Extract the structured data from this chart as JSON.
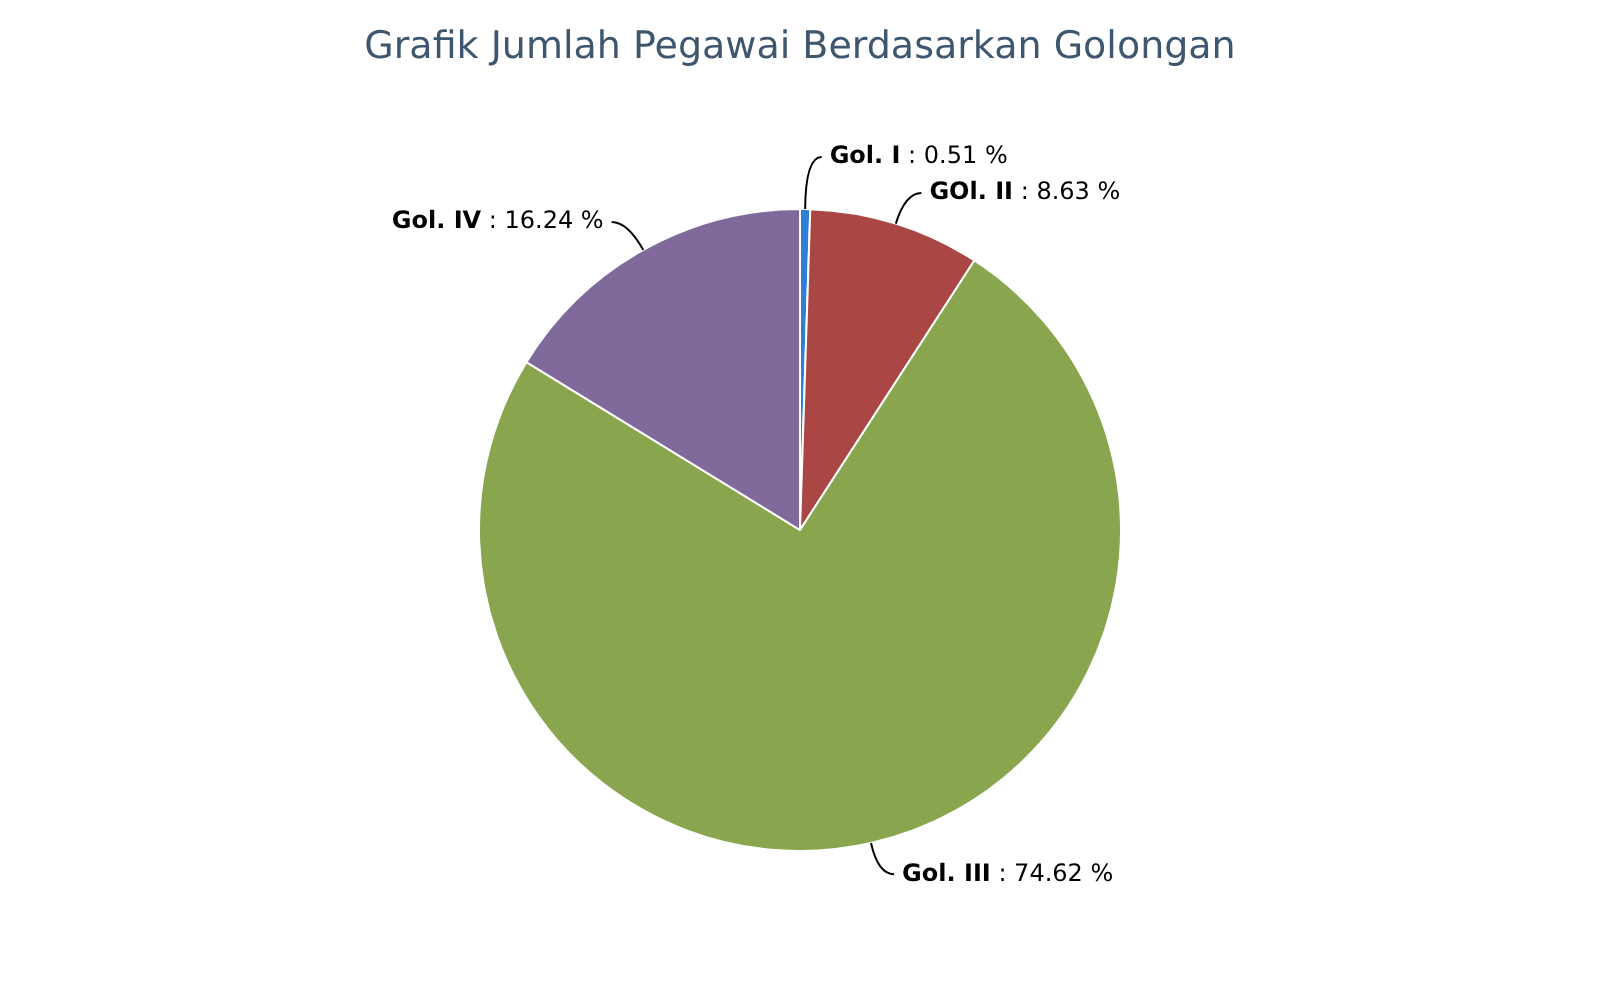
{
  "chart_data": {
    "type": "pie",
    "title": "Grafik Jumlah Pegawai Berdasarkan Golongan",
    "categories": [
      "Gol. I",
      "GOl. II",
      "Gol. III",
      "Gol. IV"
    ],
    "values": [
      0.51,
      8.63,
      74.62,
      16.24
    ],
    "colors": [
      "#2f7ed8",
      "#aa4643",
      "#89a54e",
      "#80699b"
    ],
    "value_labels": [
      ": 0.51 %",
      ": 8.63 %",
      ": 74.62 %",
      ": 16.24 %"
    ],
    "legend": false
  }
}
